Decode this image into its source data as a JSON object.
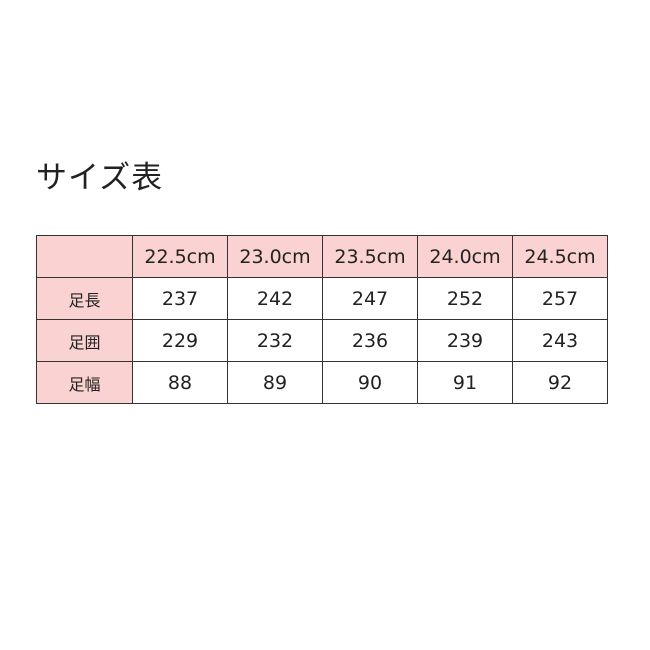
{
  "title": "サイズ表",
  "colors": {
    "header_bg": "#fbd2d2",
    "border": "#333333"
  },
  "table": {
    "corner": "",
    "columns": [
      "22.5cm",
      "23.0cm",
      "23.5cm",
      "24.0cm",
      "24.5cm"
    ],
    "rows": [
      {
        "label": "足長",
        "values": [
          "237",
          "242",
          "247",
          "252",
          "257"
        ]
      },
      {
        "label": "足囲",
        "values": [
          "229",
          "232",
          "236",
          "239",
          "243"
        ]
      },
      {
        "label": "足幅",
        "values": [
          "88",
          "89",
          "90",
          "91",
          "92"
        ]
      }
    ]
  }
}
